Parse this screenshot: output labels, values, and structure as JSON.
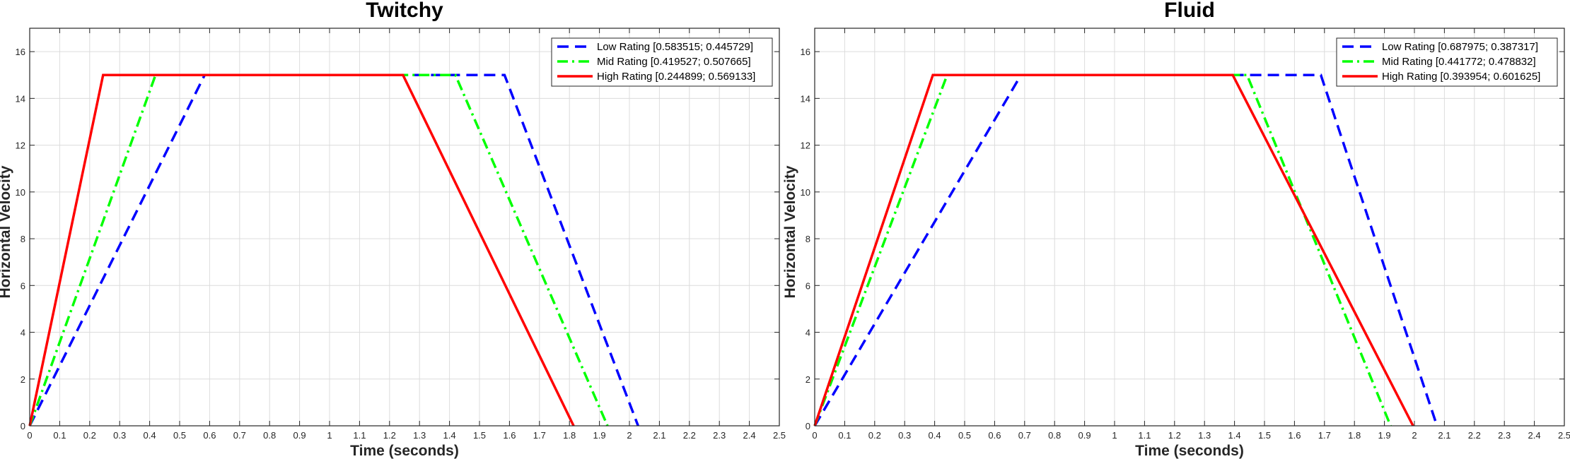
{
  "chart_data": [
    {
      "type": "line",
      "title": "Twitchy",
      "xlabel": "Time (seconds)",
      "ylabel": "Horizontal Velocity",
      "xlim": [
        0,
        2.5
      ],
      "ylim": [
        0,
        17
      ],
      "xticks": [
        0,
        0.1,
        0.2,
        0.3,
        0.4,
        0.5,
        0.6,
        0.7,
        0.8,
        0.9,
        1,
        1.1,
        1.2,
        1.3,
        1.4,
        1.5,
        1.6,
        1.7,
        1.8,
        1.9,
        2,
        2.1,
        2.2,
        2.3,
        2.4,
        2.5
      ],
      "xtick_labels": [
        "0",
        "0.1",
        "0.2",
        "0.3",
        "0.4",
        "0.5",
        "0.6",
        "0.7",
        "0.8",
        "0.9",
        "1",
        "1.1",
        "1.2",
        "1.3",
        "1.4",
        "1.5",
        "1.6",
        "1.7",
        "1.8",
        "1.9",
        "2",
        "2.1",
        "2.2",
        "2.3",
        "2.4",
        "2.5"
      ],
      "yticks": [
        0,
        2,
        4,
        6,
        8,
        10,
        12,
        14,
        16
      ],
      "ytick_labels": [
        "0",
        "2",
        "4",
        "6",
        "8",
        "10",
        "12",
        "14",
        "16"
      ],
      "grid": true,
      "legend_position": "top-right",
      "series": [
        {
          "name": "Low Rating [0.583515; 0.445729]",
          "color": "#0000FF",
          "style": "dashed",
          "x": [
            0,
            0.5835,
            1.5835,
            2.029
          ],
          "y": [
            0,
            15,
            15,
            0
          ]
        },
        {
          "name": "Mid Rating [0.419527; 0.507665]",
          "color": "#00FF00",
          "style": "dashdot",
          "x": [
            0,
            0.4195,
            1.4195,
            1.927
          ],
          "y": [
            0,
            15,
            15,
            0
          ]
        },
        {
          "name": "High Rating [0.244899; 0.569133]",
          "color": "#FF0000",
          "style": "solid",
          "x": [
            0,
            0.2449,
            1.2449,
            1.814
          ],
          "y": [
            0,
            15,
            15,
            0
          ]
        }
      ]
    },
    {
      "type": "line",
      "title": "Fluid",
      "xlabel": "Time (seconds)",
      "ylabel": "Horizontal Velocity",
      "xlim": [
        0,
        2.5
      ],
      "ylim": [
        0,
        17
      ],
      "xticks": [
        0,
        0.1,
        0.2,
        0.3,
        0.4,
        0.5,
        0.6,
        0.7,
        0.8,
        0.9,
        1,
        1.1,
        1.2,
        1.3,
        1.4,
        1.5,
        1.6,
        1.7,
        1.8,
        1.9,
        2,
        2.1,
        2.2,
        2.3,
        2.4,
        2.5
      ],
      "xtick_labels": [
        "0",
        "0.1",
        "0.2",
        "0.3",
        "0.4",
        "0.5",
        "0.6",
        "0.7",
        "0.8",
        "0.9",
        "1",
        "1.1",
        "1.2",
        "1.3",
        "1.4",
        "1.5",
        "1.6",
        "1.7",
        "1.8",
        "1.9",
        "2",
        "2.1",
        "2.2",
        "2.3",
        "2.4",
        "2.5"
      ],
      "yticks": [
        0,
        2,
        4,
        6,
        8,
        10,
        12,
        14,
        16
      ],
      "ytick_labels": [
        "0",
        "2",
        "4",
        "6",
        "8",
        "10",
        "12",
        "14",
        "16"
      ],
      "grid": true,
      "legend_position": "top-right",
      "series": [
        {
          "name": "Low Rating [0.687975; 0.387317]",
          "color": "#0000FF",
          "style": "dashed",
          "x": [
            0,
            0.688,
            1.688,
            2.0753
          ],
          "y": [
            0,
            15,
            15,
            0
          ]
        },
        {
          "name": "Mid Rating [0.441772; 0.478832]",
          "color": "#00FF00",
          "style": "dashdot",
          "x": [
            0,
            0.4418,
            1.4418,
            1.9206
          ],
          "y": [
            0,
            15,
            15,
            0
          ]
        },
        {
          "name": "High Rating [0.393954; 0.601625]",
          "color": "#FF0000",
          "style": "solid",
          "x": [
            0,
            0.394,
            1.394,
            1.9956
          ],
          "y": [
            0,
            15,
            15,
            0
          ]
        }
      ]
    }
  ]
}
